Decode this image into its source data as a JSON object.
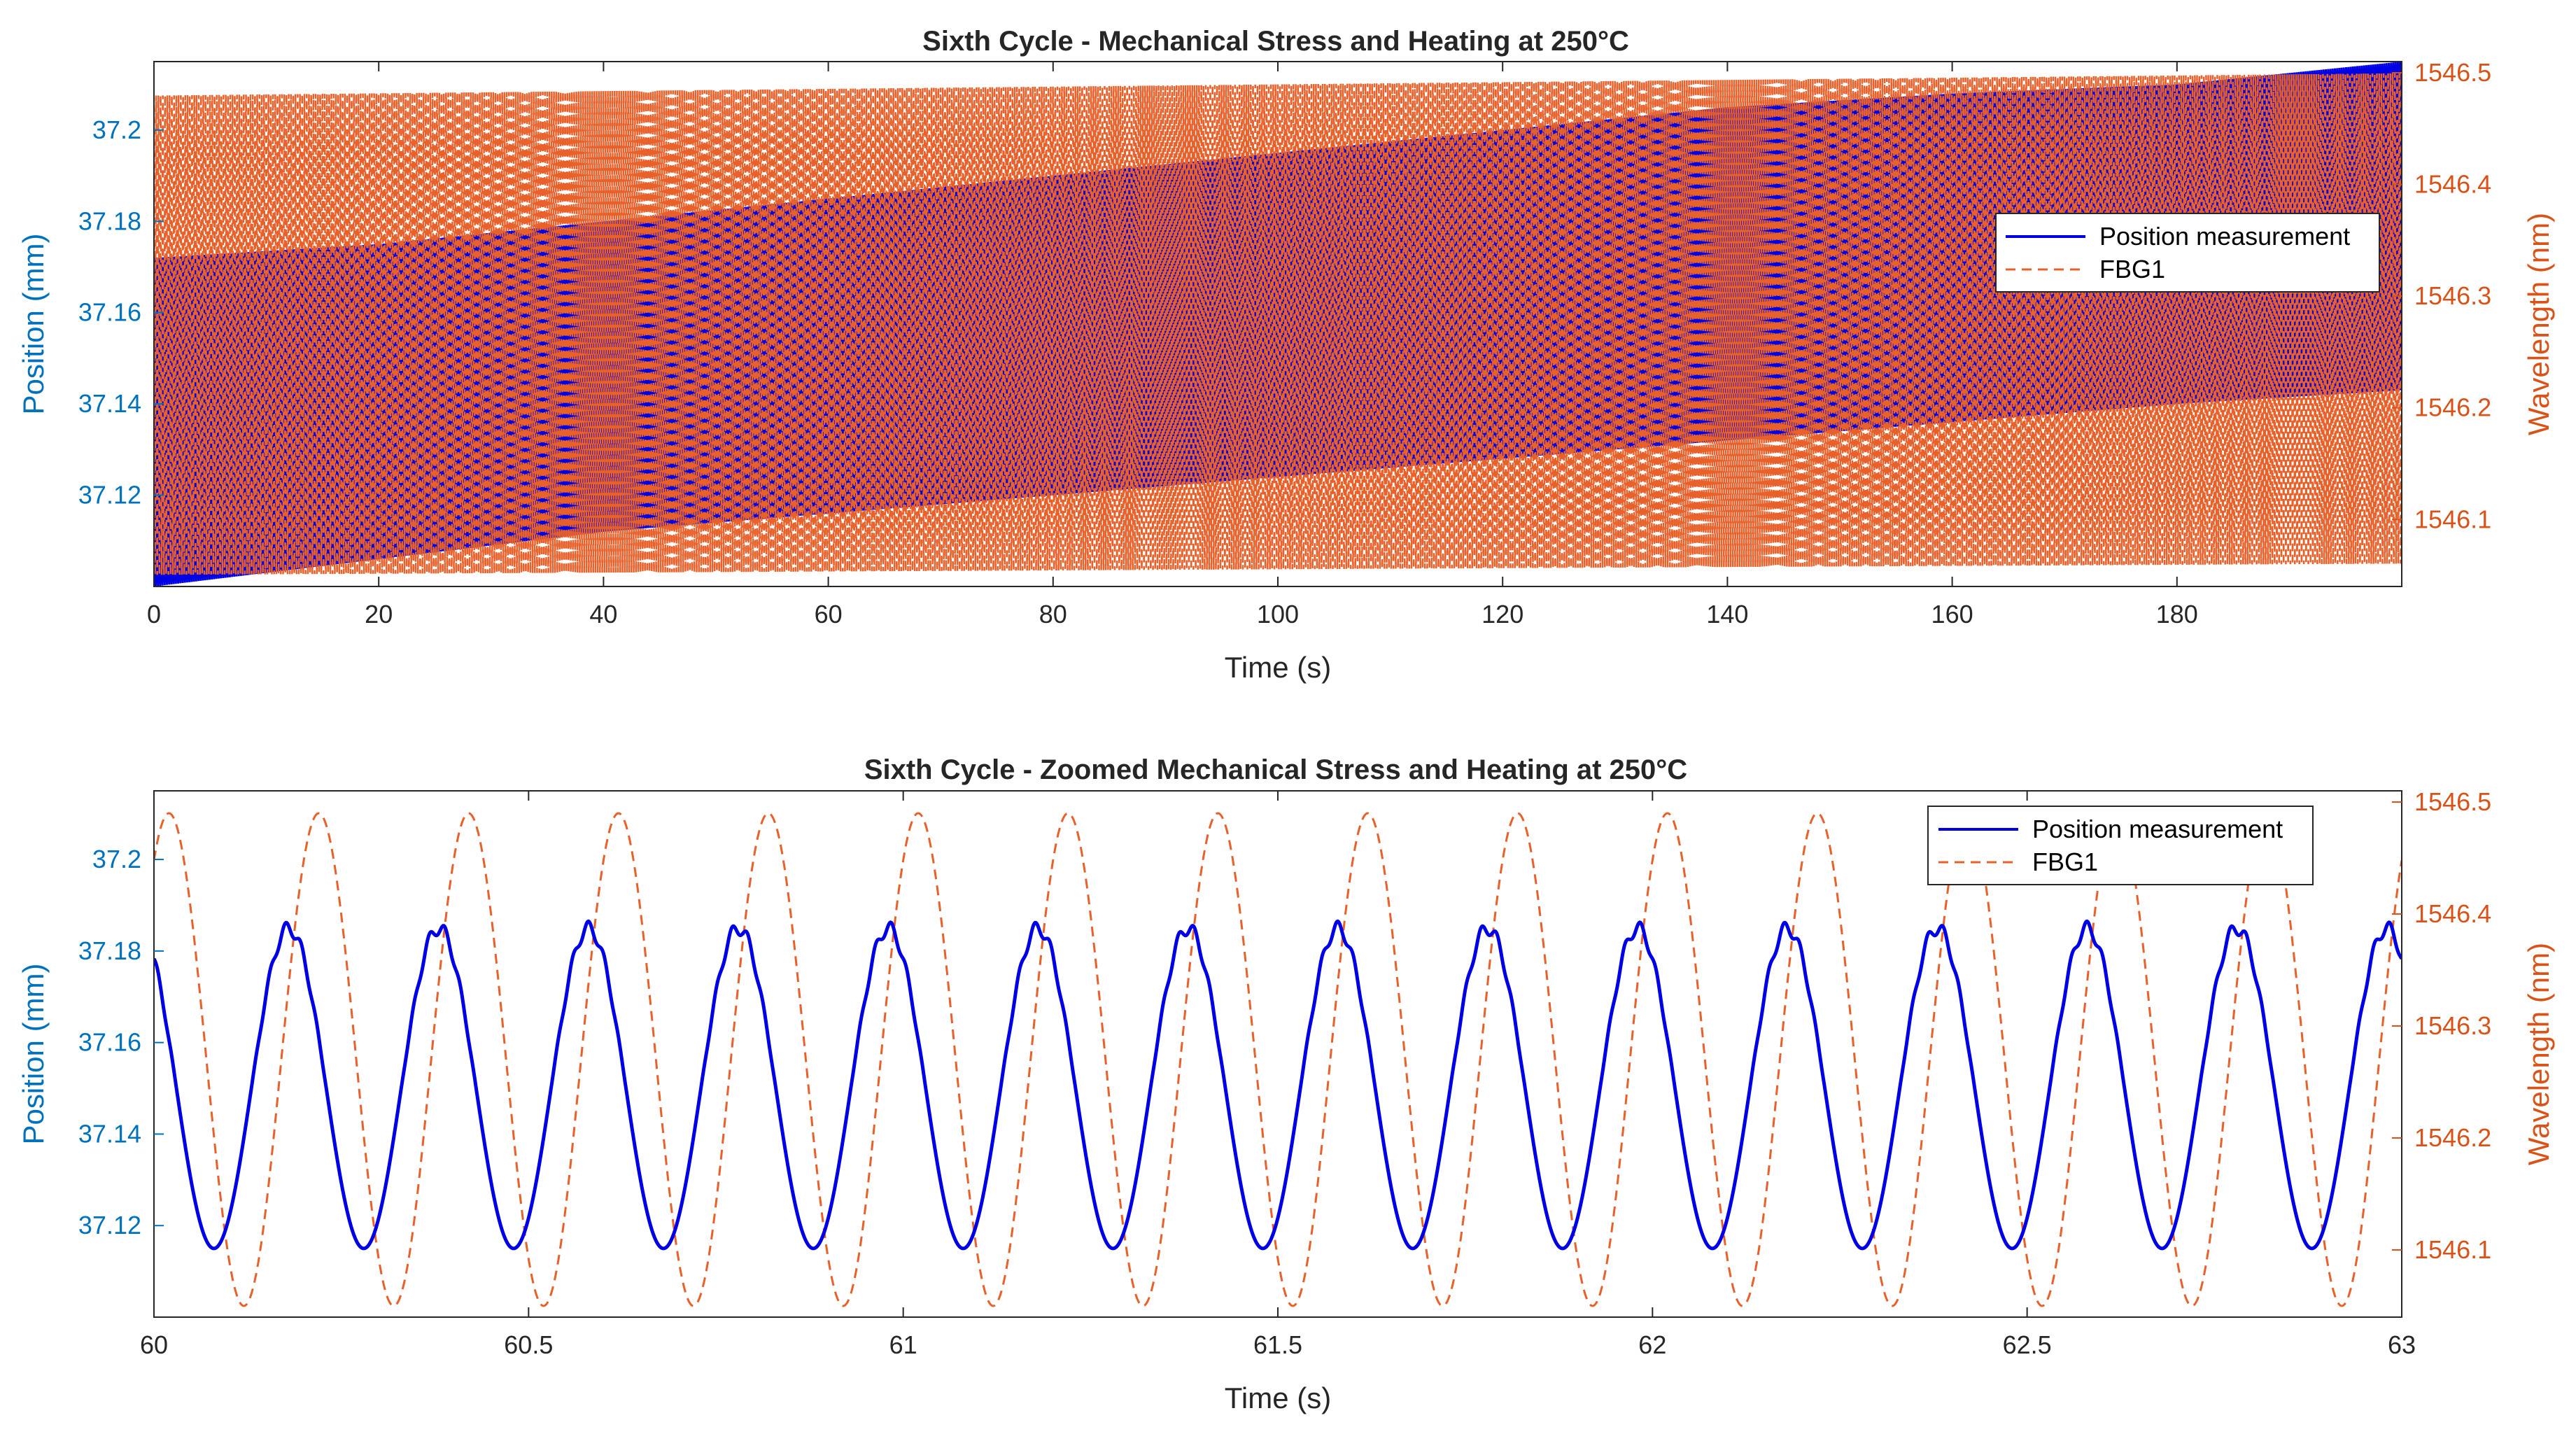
{
  "colors": {
    "position": "#0000E6",
    "fbg": "#E8602A",
    "left_axis": "#0072BD",
    "right_axis": "#D95319",
    "axis": "#262626"
  },
  "chart_data": [
    {
      "type": "line",
      "title": "Sixth Cycle - Mechanical Stress and Heating at 250°C",
      "xlabel": "Time (s)",
      "ylabel_left": "Position (mm)",
      "ylabel_right": "Wavelength (nm)",
      "xlim": [
        0,
        200
      ],
      "ylim_left": [
        37.1,
        37.215
      ],
      "ylim_right": [
        1546.04,
        1546.51
      ],
      "xticks": [
        0,
        20,
        40,
        60,
        80,
        100,
        120,
        140,
        160,
        180
      ],
      "xtick_labels": [
        "0",
        "20",
        "40",
        "60",
        "80",
        "100",
        "120",
        "140",
        "160",
        "180"
      ],
      "yticks_left": [
        37.12,
        37.14,
        37.16,
        37.18,
        37.2
      ],
      "ytick_labels_left": [
        "37.12",
        "37.14",
        "37.16",
        "37.18",
        "37.2"
      ],
      "yticks_right": [
        1546.1,
        1546.2,
        1546.3,
        1546.4,
        1546.5
      ],
      "ytick_labels_right": [
        "1546.1",
        "1546.2",
        "1546.3",
        "1546.4",
        "1546.5"
      ],
      "legend": [
        "Position measurement",
        "FBG1"
      ],
      "legend_location": "right",
      "series": [
        {
          "name": "Position measurement",
          "axis": "left",
          "style": "solid",
          "envelope_upper": [
            [
              0,
              37.172
            ],
            [
              20,
              37.175
            ],
            [
              40,
              37.18
            ],
            [
              60,
              37.185
            ],
            [
              80,
              37.19
            ],
            [
              100,
              37.195
            ],
            [
              120,
              37.2
            ],
            [
              140,
              37.205
            ],
            [
              160,
              37.208
            ],
            [
              180,
              37.21
            ],
            [
              200,
              37.215
            ]
          ],
          "envelope_lower": [
            [
              0,
              37.1
            ],
            [
              20,
              37.106
            ],
            [
              40,
              37.112
            ],
            [
              60,
              37.116
            ],
            [
              80,
              37.12
            ],
            [
              100,
              37.124
            ],
            [
              120,
              37.128
            ],
            [
              140,
              37.132
            ],
            [
              160,
              37.136
            ],
            [
              180,
              37.14
            ],
            [
              200,
              37.143
            ]
          ]
        },
        {
          "name": "FBG1",
          "axis": "right",
          "style": "dashed",
          "envelope_upper": [
            [
              0,
              1546.48
            ],
            [
              100,
              1546.49
            ],
            [
              200,
              1546.5
            ]
          ],
          "envelope_lower": [
            [
              0,
              1546.05
            ],
            [
              100,
              1546.055
            ],
            [
              200,
              1546.06
            ]
          ]
        }
      ]
    },
    {
      "type": "line",
      "title": "Sixth Cycle - Zoomed Mechanical Stress and Heating at 250°C",
      "xlabel": "Time (s)",
      "ylabel_left": "Position (mm)",
      "ylabel_right": "Wavelength (nm)",
      "xlim": [
        60,
        63
      ],
      "ylim_left": [
        37.1,
        37.215
      ],
      "ylim_right": [
        1546.04,
        1546.51
      ],
      "xticks": [
        60,
        60.5,
        61,
        61.5,
        62,
        62.5,
        63
      ],
      "xtick_labels": [
        "60",
        "60.5",
        "61",
        "61.5",
        "62",
        "62.5",
        "63"
      ],
      "yticks_left": [
        37.12,
        37.14,
        37.16,
        37.18,
        37.2
      ],
      "ytick_labels_left": [
        "37.12",
        "37.14",
        "37.16",
        "37.18",
        "37.2"
      ],
      "yticks_right": [
        1546.1,
        1546.2,
        1546.3,
        1546.4,
        1546.5
      ],
      "ytick_labels_right": [
        "1546.1",
        "1546.2",
        "1546.3",
        "1546.4",
        "1546.5"
      ],
      "legend": [
        "Position measurement",
        "FBG1"
      ],
      "legend_location": "top-right",
      "series": [
        {
          "name": "Position measurement",
          "axis": "left",
          "style": "solid",
          "frequency_hz": 5,
          "min": 37.115,
          "max": 37.185,
          "peak_times": [
            60.18,
            60.38,
            60.58,
            60.78,
            60.98,
            61.18,
            61.38,
            61.58,
            61.78,
            61.98,
            62.18,
            62.38,
            62.58,
            62.78,
            62.98
          ]
        },
        {
          "name": "FBG1",
          "axis": "right",
          "style": "dashed",
          "frequency_hz": 5,
          "min": 1546.05,
          "max": 1546.49,
          "peak_times": [
            60.02,
            60.22,
            60.42,
            60.62,
            60.82,
            61.02,
            61.22,
            61.42,
            61.62,
            61.82,
            62.02,
            62.22,
            62.42,
            62.62,
            62.82
          ]
        }
      ]
    }
  ]
}
